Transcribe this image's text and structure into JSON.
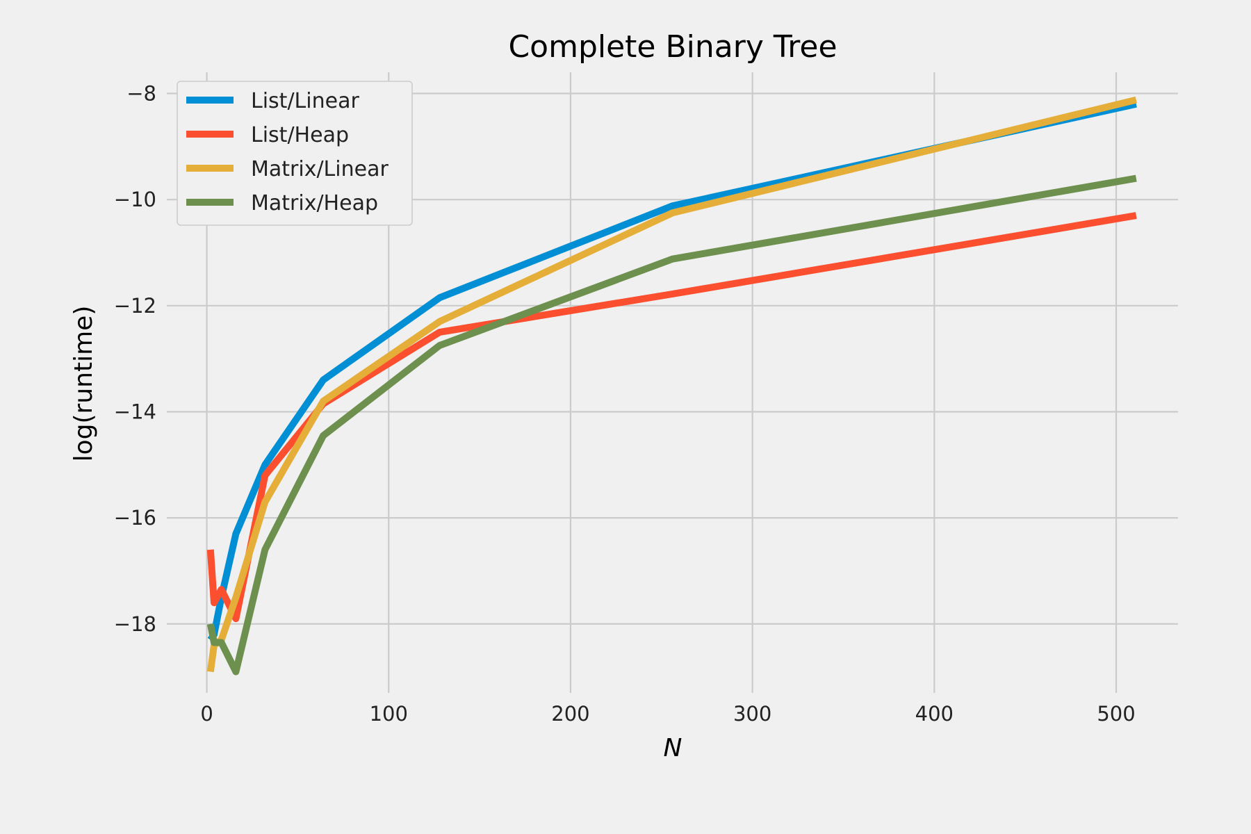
{
  "chart_data": {
    "type": "line",
    "title": "Complete Binary Tree",
    "xlabel": "N",
    "ylabel": "log(runtime)",
    "xlim": [
      -22,
      534
    ],
    "ylim": [
      -19.3,
      -7.6
    ],
    "xticks": [
      0,
      100,
      200,
      300,
      400,
      500
    ],
    "xtick_labels": [
      "0",
      "100",
      "200",
      "300",
      "400",
      "500"
    ],
    "yticks": [
      -8,
      -10,
      -12,
      -14,
      -16,
      -18
    ],
    "ytick_labels": [
      "−8",
      "−10",
      "−12",
      "−14",
      "−16",
      "−18"
    ],
    "grid": true,
    "legend_position": "top-left",
    "x": [
      2,
      4,
      8,
      16,
      32,
      64,
      128,
      256,
      511
    ],
    "series": [
      {
        "name": "List/Linear",
        "color": "#008fd5",
        "values": [
          -18.3,
          -18.2,
          -17.5,
          -16.3,
          -15.0,
          -13.4,
          -11.85,
          -10.12,
          -8.2
        ]
      },
      {
        "name": "List/Heap",
        "color": "#fc4f30",
        "values": [
          -16.6,
          -17.6,
          -17.35,
          -17.9,
          -15.2,
          -13.85,
          -12.5,
          -11.78,
          -10.3
        ]
      },
      {
        "name": "Matrix/Linear",
        "color": "#e5ae38",
        "values": [
          -18.9,
          -18.4,
          -18.3,
          -17.5,
          -15.7,
          -13.8,
          -12.3,
          -10.25,
          -8.12
        ]
      },
      {
        "name": "Matrix/Heap",
        "color": "#6d904f",
        "values": [
          -18.0,
          -18.35,
          -18.35,
          -18.9,
          -16.6,
          -14.45,
          -12.75,
          -11.12,
          -9.6
        ]
      }
    ]
  }
}
